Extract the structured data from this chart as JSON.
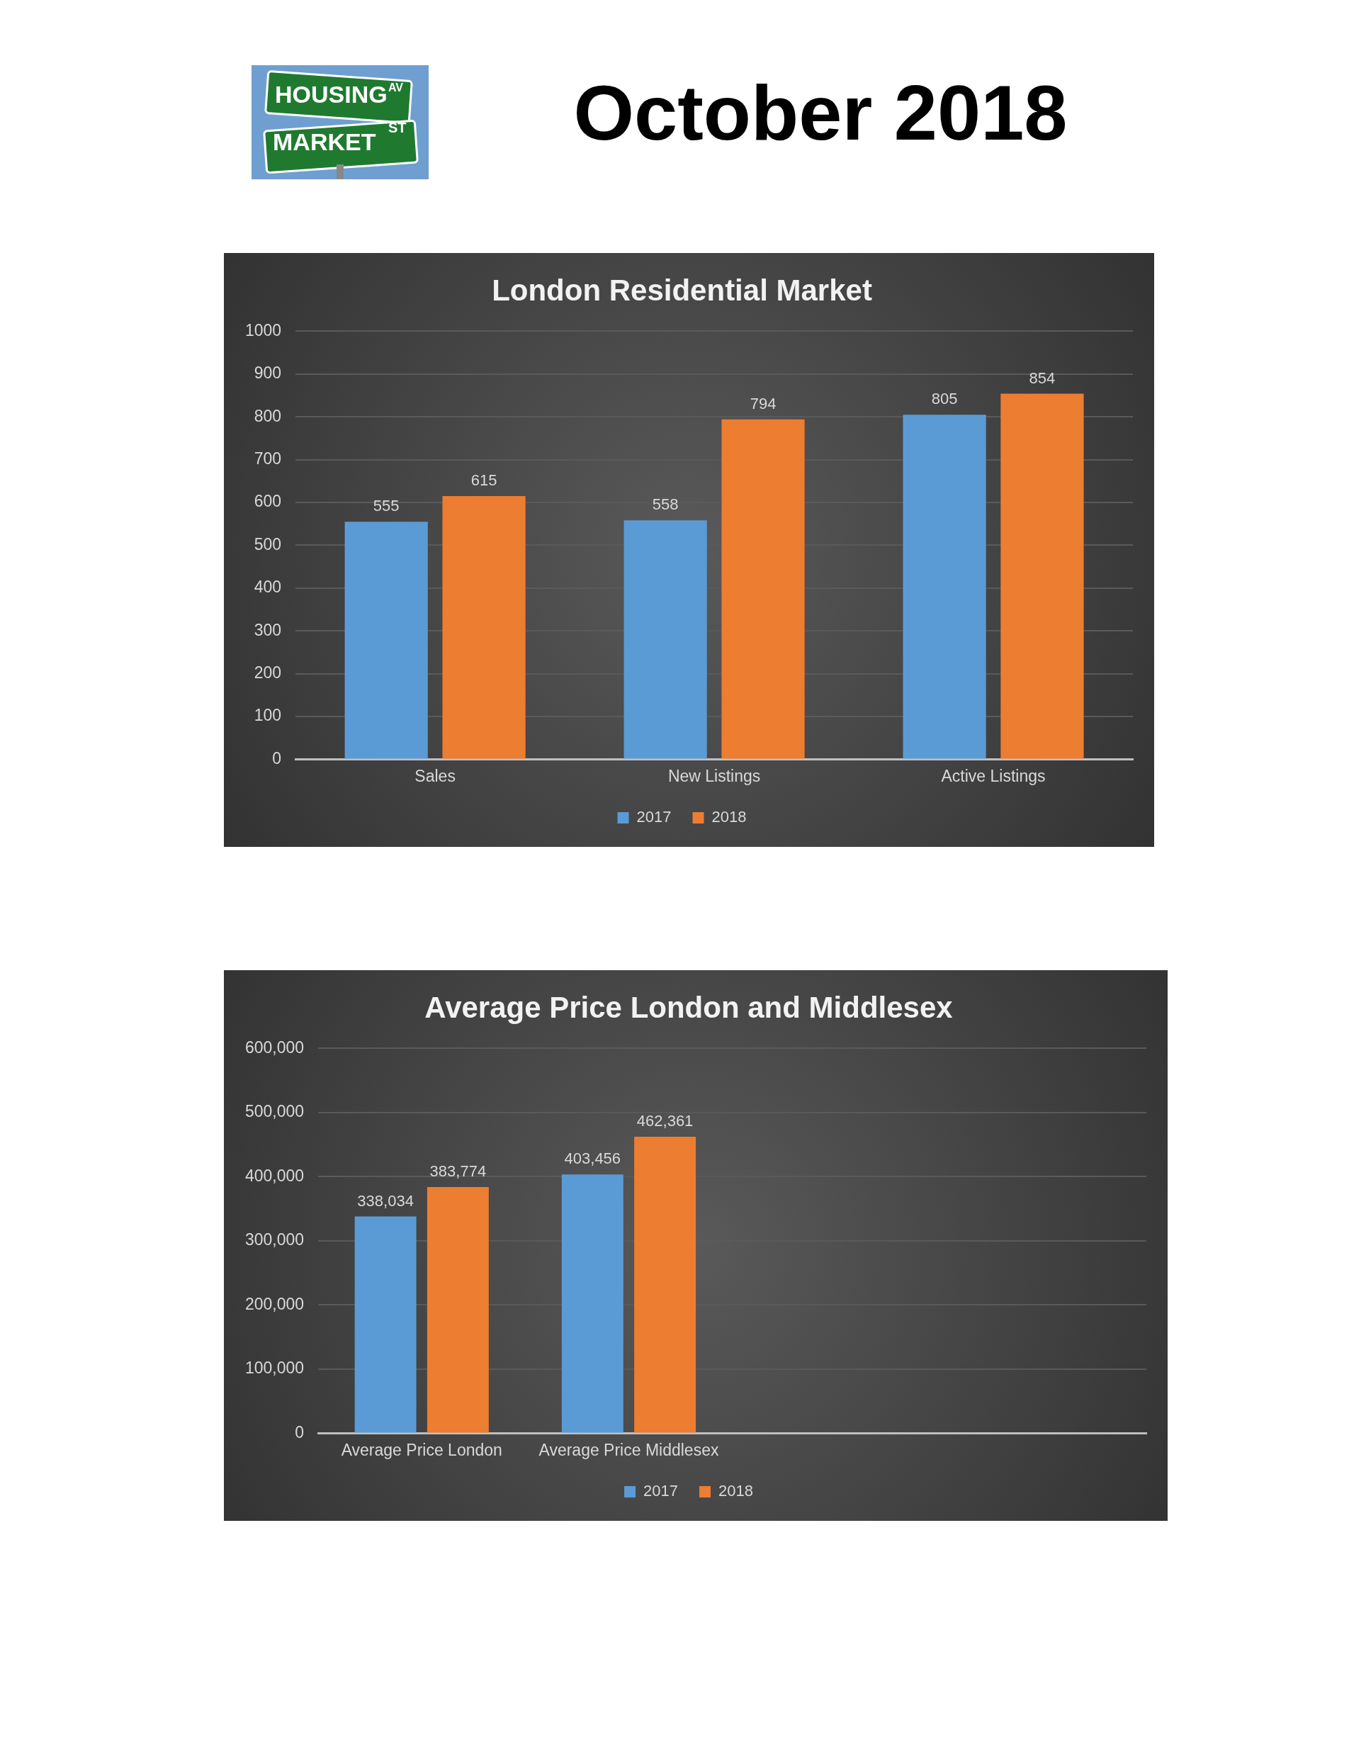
{
  "chart_data": [
    {
      "type": "other",
      "title": "October 2018",
      "annotations": [
        "HOUSING",
        "AV",
        "MARKET",
        "ST"
      ]
    },
    {
      "type": "bar",
      "title": "London Residential Market",
      "categories": [
        "Sales",
        "New Listings",
        "Active Listings"
      ],
      "series": [
        {
          "name": "2017",
          "color": "#5b9bd5",
          "values": [
            555,
            558,
            805
          ]
        },
        {
          "name": "2018",
          "color": "#ed7d31",
          "values": [
            615,
            794,
            854
          ]
        }
      ],
      "ylim": [
        0,
        1000
      ],
      "yticks": [
        0,
        100,
        200,
        300,
        400,
        500,
        600,
        700,
        800,
        900,
        1000
      ],
      "grid": "y",
      "legend": "bottom",
      "data_labels": true
    },
    {
      "type": "bar",
      "title": "Average Price London and Middlesex",
      "categories": [
        "Average Price London",
        "Average Price Middlesex",
        null,
        null
      ],
      "series": [
        {
          "name": "2017",
          "color": "#5b9bd5",
          "values": [
            338034,
            403456,
            null,
            null
          ],
          "value_labels": [
            "338,034",
            "403,456",
            null,
            null
          ]
        },
        {
          "name": "2018",
          "color": "#ed7d31",
          "values": [
            383774,
            462361,
            null,
            null
          ],
          "value_labels": [
            "383,774",
            "462,361",
            null,
            null
          ]
        }
      ],
      "ylim": [
        0,
        600000
      ],
      "yticks": [
        0,
        {
          "value": 100000,
          "label": "100,000"
        },
        {
          "value": 200000,
          "label": "200,000"
        },
        {
          "value": 300000,
          "label": "300,000"
        },
        {
          "value": 400000,
          "label": "400,000"
        },
        {
          "value": 500000,
          "label": "500,000"
        },
        {
          "value": 600000,
          "label": "600,000"
        }
      ],
      "grid": "y",
      "legend": "bottom"
    }
  ]
}
